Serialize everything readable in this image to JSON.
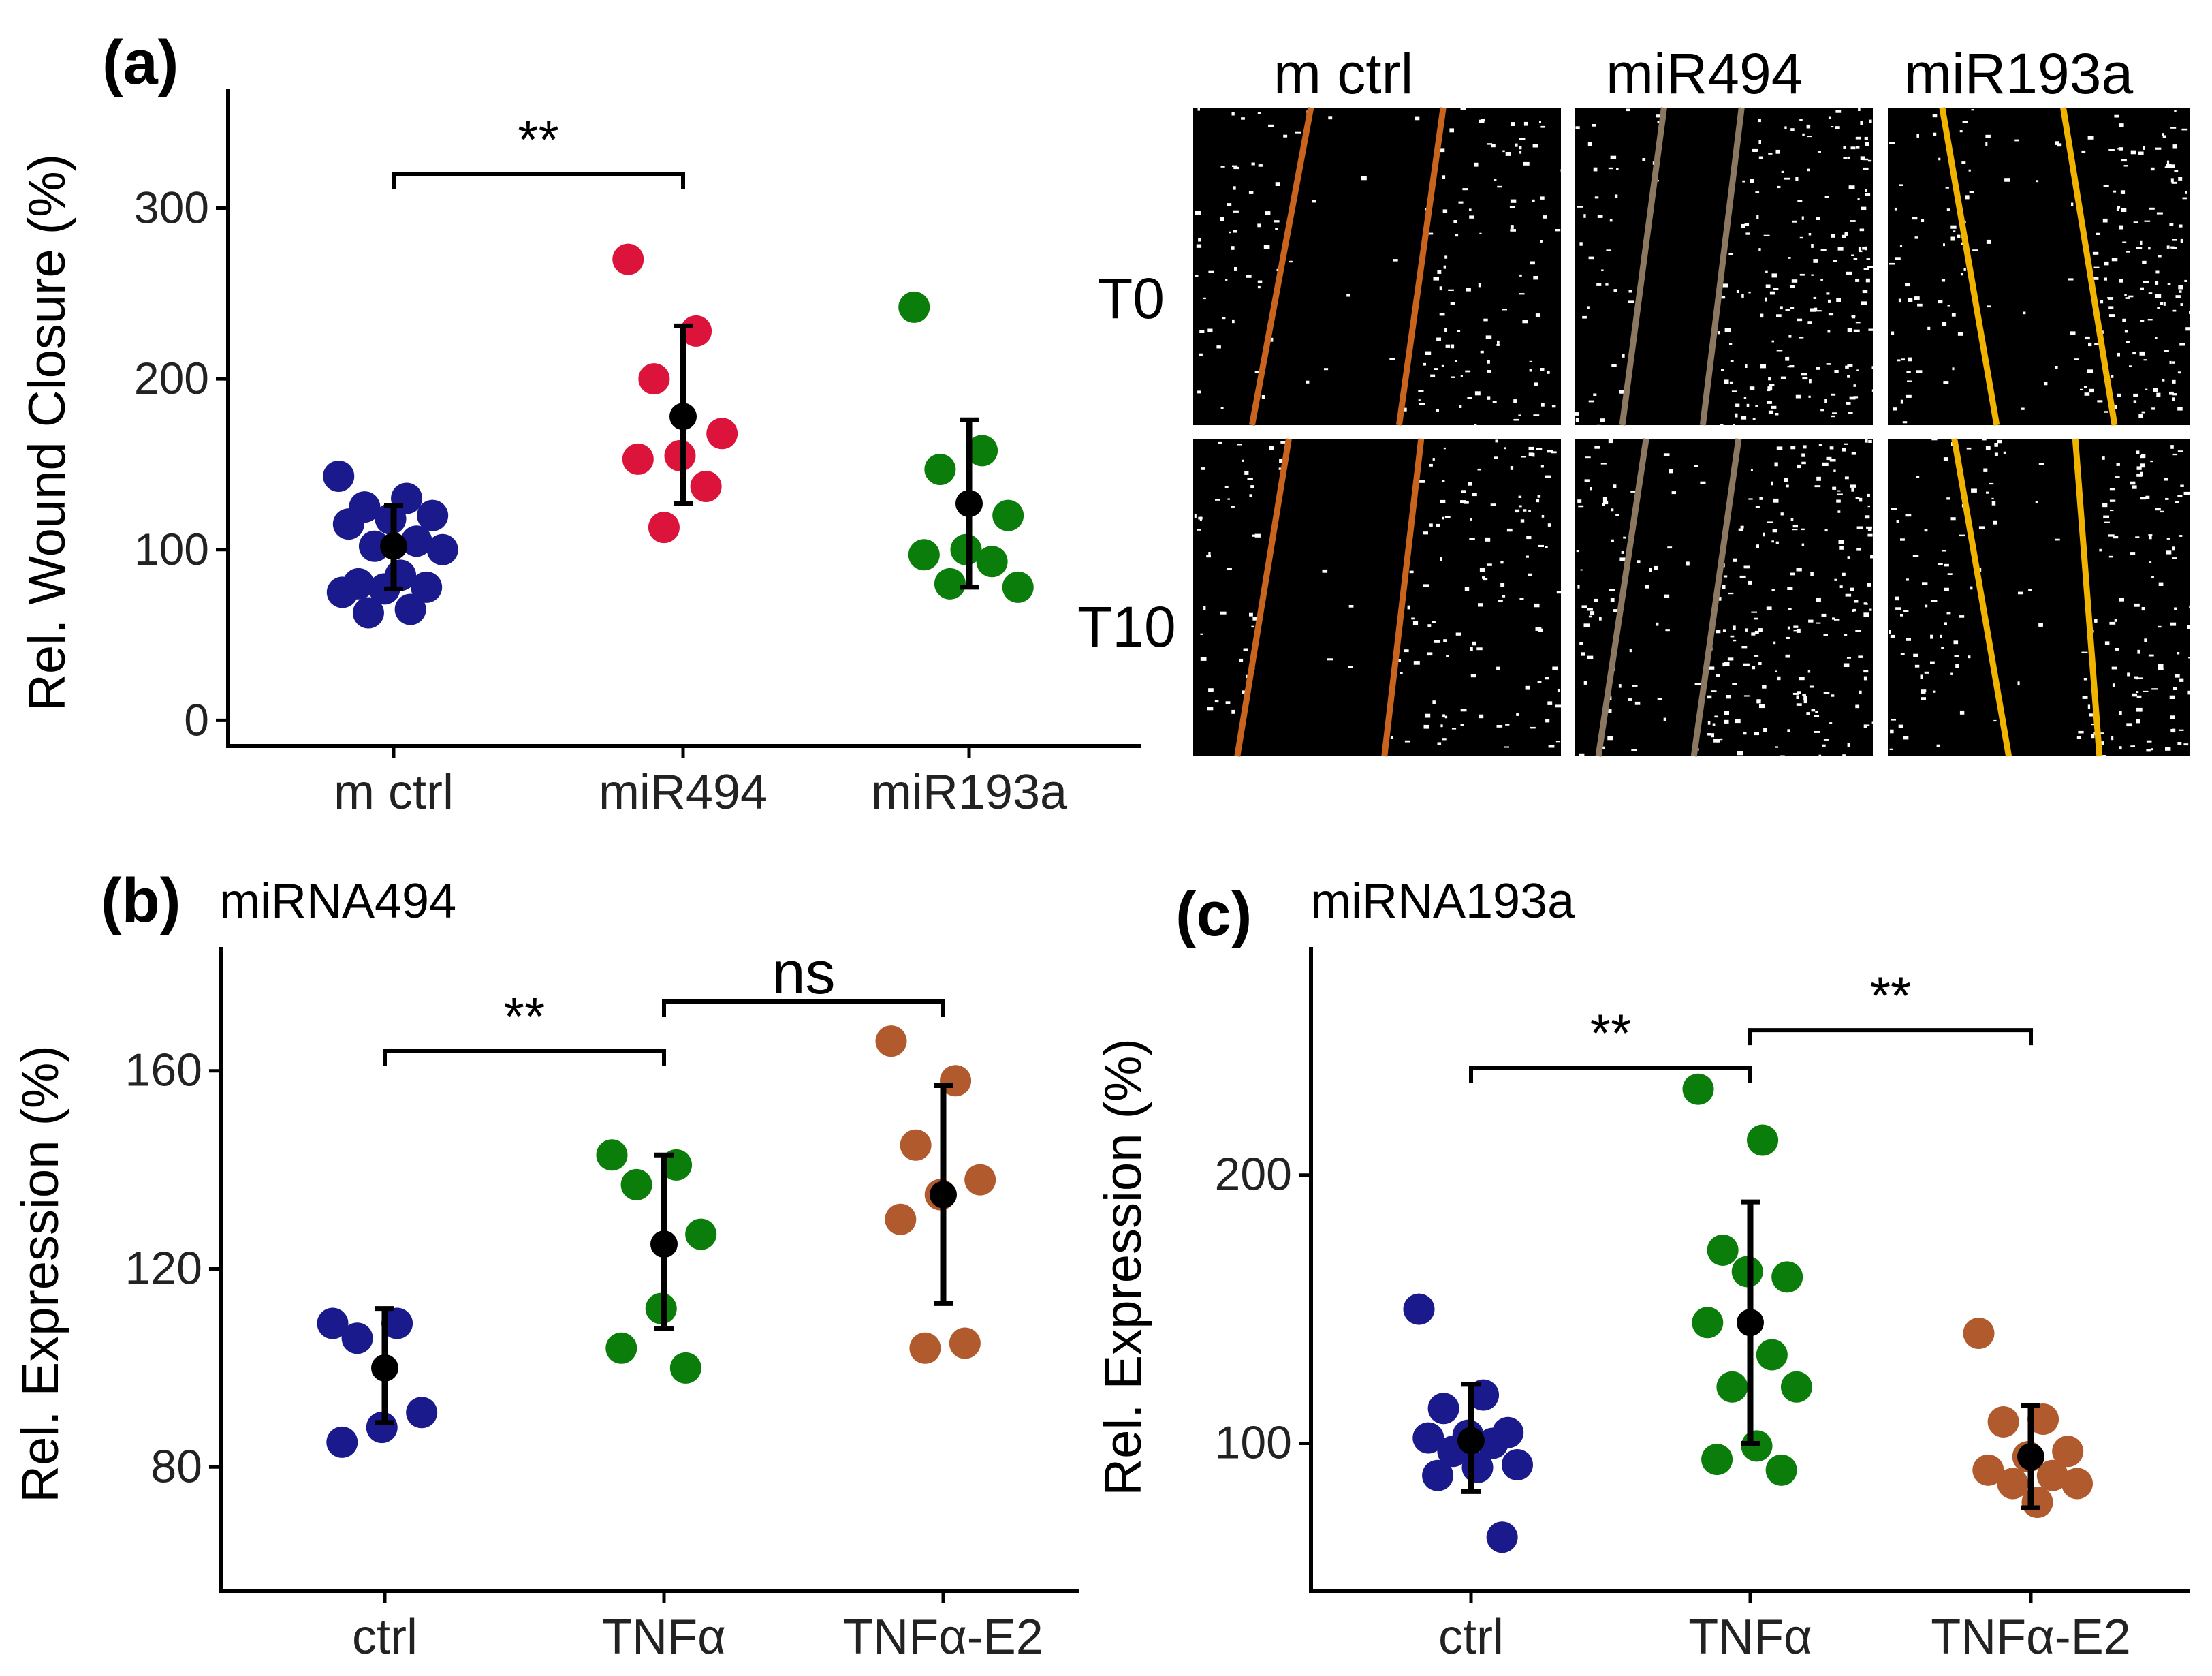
{
  "panels": {
    "a": {
      "letter": "(a)"
    },
    "b": {
      "letter": "(b)",
      "subtitle": "miRNA494"
    },
    "c": {
      "letter": "(c)",
      "subtitle": "miRNA193a"
    }
  },
  "micrographs": {
    "columns": [
      "m ctrl",
      "miR494",
      "miR193a"
    ],
    "rows": [
      "T0",
      "T10"
    ],
    "line_colors": [
      "#C8641E",
      "#8C7860",
      "#F0B400"
    ]
  },
  "chart_data": [
    {
      "id": "a",
      "type": "scatter",
      "title": "",
      "xlabel": "",
      "ylabel": "Rel. Wound Closure (%)",
      "ylim": [
        -15,
        370
      ],
      "yticks": [
        0,
        100,
        200,
        300
      ],
      "categories": [
        "m ctrl",
        "miR494",
        "miR193a"
      ],
      "colors": [
        "#1A1A8C",
        "#DC143C",
        "#0A7D0A"
      ],
      "series": [
        {
          "name": "m ctrl",
          "values": [
            143,
            130,
            125,
            120,
            118,
            115,
            105,
            102,
            100,
            85,
            80,
            78,
            77,
            75,
            65,
            63
          ],
          "mean": 102,
          "err_low": 77,
          "err_high": 126
        },
        {
          "name": "miR494",
          "values": [
            270,
            228,
            200,
            168,
            155,
            153,
            137,
            113
          ],
          "mean": 178,
          "err_low": 127,
          "err_high": 231
        },
        {
          "name": "miR193a",
          "values": [
            242,
            158,
            147,
            120,
            100,
            97,
            93,
            80,
            78
          ],
          "mean": 127,
          "err_low": 78,
          "err_high": 176
        }
      ],
      "comparisons": [
        {
          "from": 0,
          "to": 1,
          "label": "**",
          "y": 320
        }
      ]
    },
    {
      "id": "b",
      "type": "scatter",
      "title": "miRNA494",
      "xlabel": "",
      "ylabel": "Rel. Expression (%)",
      "ylim": [
        55,
        185
      ],
      "yticks": [
        80,
        120,
        160
      ],
      "categories": [
        "ctrl",
        "TNFα",
        "TNFα-E2"
      ],
      "colors": [
        "#1A1A8C",
        "#0A7D0A",
        "#B05A2E"
      ],
      "series": [
        {
          "name": "ctrl",
          "values": [
            109,
            109,
            106,
            91,
            88,
            85
          ],
          "mean": 100,
          "err_low": 89,
          "err_high": 112
        },
        {
          "name": "TNFα",
          "values": [
            143,
            141,
            137,
            127,
            112,
            104,
            100
          ],
          "mean": 125,
          "err_low": 108,
          "err_high": 143
        },
        {
          "name": "TNFα-E2",
          "values": [
            166,
            158,
            145,
            138,
            135,
            130,
            105,
            104
          ],
          "mean": 135,
          "err_low": 113,
          "err_high": 157
        }
      ],
      "comparisons": [
        {
          "from": 0,
          "to": 1,
          "label": "**",
          "y": 164
        },
        {
          "from": 1,
          "to": 2,
          "label": "ns",
          "y": 174
        }
      ]
    },
    {
      "id": "c",
      "type": "scatter",
      "title": "miRNA193a",
      "xlabel": "",
      "ylabel": "Rel. Expression (%)",
      "ylim": [
        45,
        285
      ],
      "yticks": [
        100,
        200
      ],
      "categories": [
        "ctrl",
        "TNFα",
        "TNFα-E2"
      ],
      "colors": [
        "#1A1A8C",
        "#0A7D0A",
        "#B05A2E"
      ],
      "series": [
        {
          "name": "ctrl",
          "values": [
            150,
            118,
            113,
            104,
            103,
            102,
            100,
            97,
            92,
            91,
            88,
            65
          ],
          "mean": 101,
          "err_low": 82,
          "err_high": 122
        },
        {
          "name": "TNFα",
          "values": [
            232,
            213,
            172,
            162,
            164,
            145,
            133,
            121,
            121,
            99,
            94,
            90
          ],
          "mean": 145,
          "err_low": 100,
          "err_high": 190
        },
        {
          "name": "TNFα-E2",
          "values": [
            141,
            109,
            108,
            97,
            95,
            90,
            88,
            85,
            85,
            78
          ],
          "mean": 95,
          "err_low": 76,
          "err_high": 114
        }
      ],
      "comparisons": [
        {
          "from": 0,
          "to": 1,
          "label": "**",
          "y": 240
        },
        {
          "from": 1,
          "to": 2,
          "label": "**",
          "y": 254
        }
      ]
    }
  ]
}
